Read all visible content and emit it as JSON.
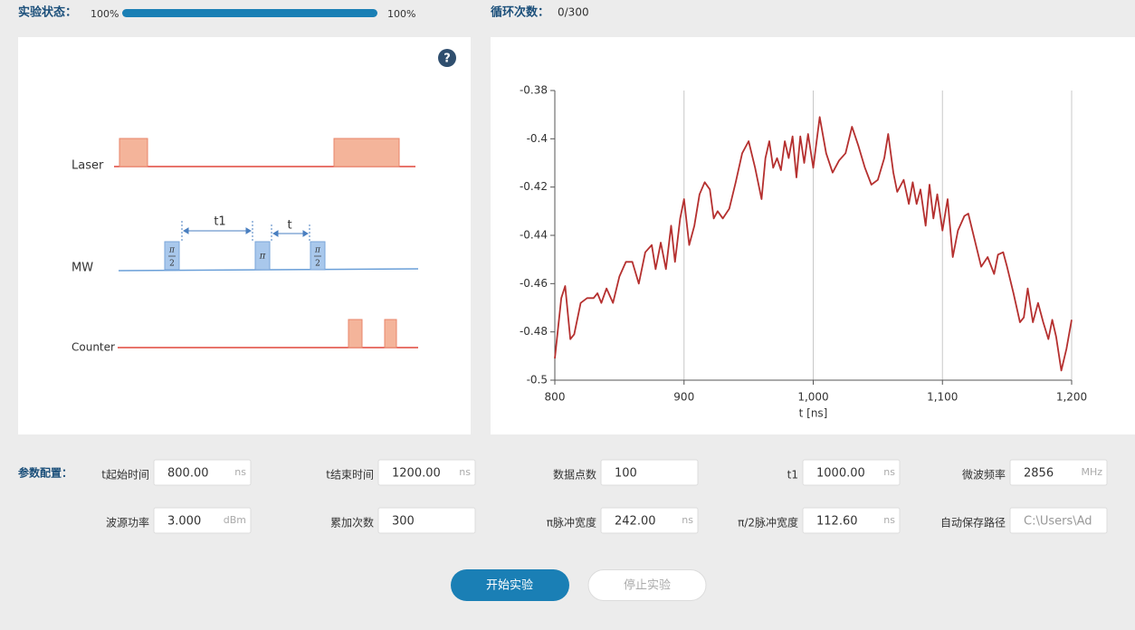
{
  "status": {
    "label": "实验状态：",
    "progress_left": "100%",
    "progress_right": "100%",
    "loop_label": "循环次数：",
    "loop_value": "0/300"
  },
  "diagram": {
    "help": "?",
    "laser": "Laser",
    "mw": "MW",
    "counter": "Counter",
    "t1": "t1",
    "t": "t",
    "mw_pulses": [
      {
        "numerator": "π",
        "denominator": "2"
      },
      {
        "symbol": "π"
      },
      {
        "numerator": "π",
        "denominator": "2"
      }
    ]
  },
  "chart_data": {
    "type": "line",
    "color": "#b5302f",
    "xlabel": "t [ns]",
    "x": [
      800,
      805,
      808,
      812,
      815,
      820,
      825,
      830,
      833,
      836,
      840,
      845,
      850,
      855,
      860,
      865,
      870,
      875,
      878,
      882,
      886,
      890,
      893,
      897,
      900,
      904,
      908,
      912,
      916,
      920,
      923,
      926,
      930,
      935,
      940,
      945,
      950,
      955,
      960,
      963,
      966,
      969,
      972,
      975,
      978,
      981,
      984,
      987,
      990,
      993,
      996,
      1000,
      1005,
      1010,
      1015,
      1020,
      1025,
      1030,
      1035,
      1040,
      1045,
      1050,
      1055,
      1058,
      1062,
      1065,
      1070,
      1074,
      1077,
      1080,
      1083,
      1087,
      1090,
      1093,
      1096,
      1100,
      1104,
      1108,
      1112,
      1117,
      1120,
      1125,
      1130,
      1135,
      1140,
      1143,
      1147,
      1150,
      1155,
      1160,
      1163,
      1166,
      1170,
      1174,
      1178,
      1182,
      1185,
      1188,
      1192,
      1196,
      1200
    ],
    "values": [
      -0.491,
      -0.466,
      -0.461,
      -0.483,
      -0.481,
      -0.468,
      -0.466,
      -0.466,
      -0.464,
      -0.468,
      -0.462,
      -0.468,
      -0.457,
      -0.451,
      -0.451,
      -0.46,
      -0.447,
      -0.444,
      -0.454,
      -0.443,
      -0.454,
      -0.436,
      -0.451,
      -0.433,
      -0.425,
      -0.444,
      -0.436,
      -0.423,
      -0.418,
      -0.421,
      -0.433,
      -0.43,
      -0.433,
      -0.429,
      -0.418,
      -0.406,
      -0.401,
      -0.412,
      -0.425,
      -0.408,
      -0.401,
      -0.412,
      -0.408,
      -0.413,
      -0.401,
      -0.408,
      -0.399,
      -0.416,
      -0.399,
      -0.41,
      -0.398,
      -0.412,
      -0.391,
      -0.406,
      -0.414,
      -0.409,
      -0.406,
      -0.395,
      -0.403,
      -0.412,
      -0.419,
      -0.417,
      -0.408,
      -0.398,
      -0.414,
      -0.422,
      -0.417,
      -0.427,
      -0.418,
      -0.427,
      -0.421,
      -0.436,
      -0.419,
      -0.433,
      -0.423,
      -0.438,
      -0.425,
      -0.449,
      -0.438,
      -0.432,
      -0.431,
      -0.442,
      -0.453,
      -0.449,
      -0.456,
      -0.448,
      -0.447,
      -0.453,
      -0.464,
      -0.476,
      -0.474,
      -0.462,
      -0.476,
      -0.468,
      -0.476,
      -0.483,
      -0.475,
      -0.482,
      -0.496,
      -0.487,
      -0.475
    ],
    "xlim": [
      800,
      1200
    ],
    "ylim": [
      -0.5,
      -0.38
    ],
    "xticks": [
      800,
      900,
      {
        "value": 1000,
        "label": "1,000"
      },
      {
        "value": 1100,
        "label": "1,100"
      },
      {
        "value": 1200,
        "label": "1,200"
      }
    ],
    "yticks": [
      -0.5,
      -0.48,
      -0.46,
      -0.44,
      -0.42,
      -0.4,
      -0.38
    ],
    "grid": true
  },
  "params": {
    "title": "参数配置：",
    "fields": [
      {
        "label": "t起始时间",
        "value": "800.00",
        "unit": "ns"
      },
      {
        "label": "t结束时间",
        "value": "1200.00",
        "unit": "ns"
      },
      {
        "label": "数据点数",
        "value": "100"
      },
      {
        "label": "t1",
        "value": "1000.00",
        "unit": "ns"
      },
      {
        "label": "微波频率",
        "value": "2856",
        "unit": "MHz"
      },
      {
        "label": "波源功率",
        "value": "3.000",
        "unit": "dBm"
      },
      {
        "label": "累加次数",
        "value": "300"
      },
      {
        "label": "π脉冲宽度",
        "value": "242.00",
        "unit": "ns"
      },
      {
        "label": "π/2脉冲宽度",
        "value": "112.60",
        "unit": "ns"
      },
      {
        "label": "自动保存路径",
        "value": "C:\\Users\\Ad"
      }
    ]
  },
  "buttons": {
    "start": "开始实验",
    "stop": "停止实验"
  }
}
